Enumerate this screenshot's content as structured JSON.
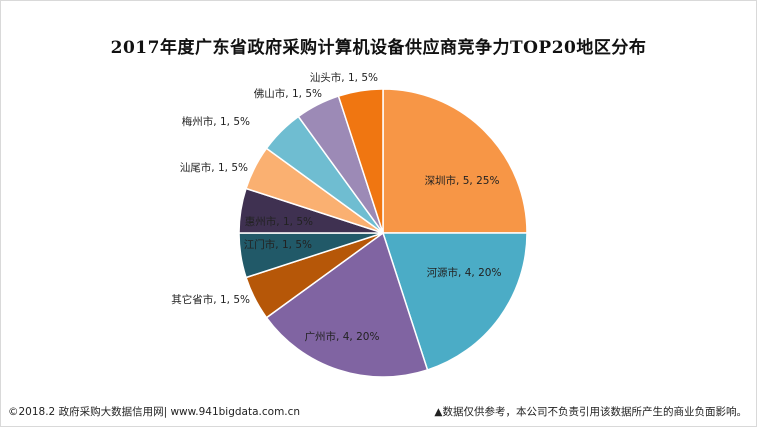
{
  "title": "2017年度广东省政府采购计算机设备供应商竞争力TOP20地区分布",
  "chart_data": {
    "type": "pie",
    "total": 20,
    "slices": [
      {
        "name": "深圳市",
        "value": 5,
        "percent": "25%",
        "label": "深圳市, 5, 25%",
        "color": "#F79646"
      },
      {
        "name": "河源市",
        "value": 4,
        "percent": "20%",
        "label": "河源市, 4, 20%",
        "color": "#4BACC6"
      },
      {
        "name": "广州市",
        "value": 4,
        "percent": "20%",
        "label": "广州市, 4, 20%",
        "color": "#8064A2"
      },
      {
        "name": "其它省市",
        "value": 1,
        "percent": "5%",
        "label": "其它省市, 1, 5%",
        "color": "#B65708"
      },
      {
        "name": "江门市",
        "value": 1,
        "percent": "5%",
        "label": "江门市, 1, 5%",
        "color": "#215968"
      },
      {
        "name": "惠州市",
        "value": 1,
        "percent": "5%",
        "label": "惠州市, 1, 5%",
        "color": "#3F3151"
      },
      {
        "name": "汕尾市",
        "value": 1,
        "percent": "5%",
        "label": "汕尾市, 1, 5%",
        "color": "#FAB071"
      },
      {
        "name": "梅州市",
        "value": 1,
        "percent": "5%",
        "label": "梅州市, 1, 5%",
        "color": "#6FBDD1"
      },
      {
        "name": "佛山市",
        "value": 1,
        "percent": "5%",
        "label": "佛山市, 1, 5%",
        "color": "#9C8AB6"
      },
      {
        "name": "汕头市",
        "value": 1,
        "percent": "5%",
        "label": "汕头市, 1, 5%",
        "color": "#F07611"
      }
    ]
  },
  "footer": {
    "left": "©2018.2 政府采购大数据信用网| www.941bigdata.com.cn",
    "right": "▲数据仅供参考，本公司不负责引用该数据所产生的商业负面影响。"
  }
}
